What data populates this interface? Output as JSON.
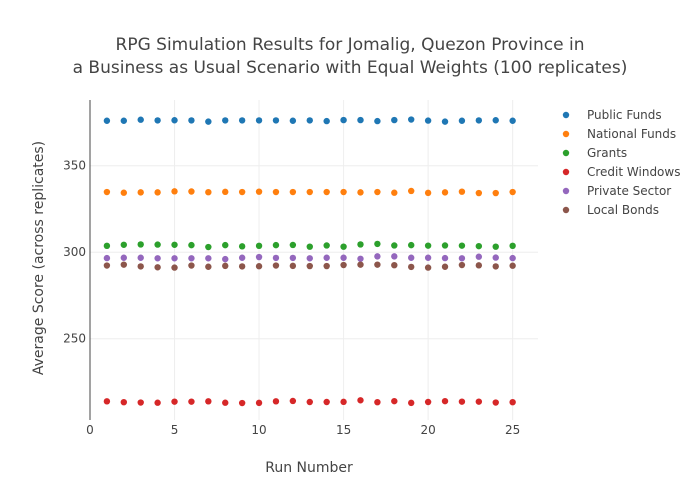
{
  "chart_data": {
    "type": "scatter",
    "title_lines": [
      "RPG Simulation Results for Jomalig, Quezon Province in",
      "a Business as Usual Scenario with Equal Weights (100 replicates)"
    ],
    "xlabel": "Run Number",
    "ylabel": "Average Score (across replicates)",
    "xlim": [
      0,
      26.5
    ],
    "ylim": [
      203,
      388
    ],
    "xticks": [
      0,
      5,
      10,
      15,
      20,
      25
    ],
    "yticks": [
      250,
      300,
      350
    ],
    "grid": true,
    "legend_position": "top-right",
    "x": [
      1,
      2,
      3,
      4,
      5,
      6,
      7,
      8,
      9,
      10,
      11,
      12,
      13,
      14,
      15,
      16,
      17,
      18,
      19,
      20,
      21,
      22,
      23,
      24,
      25
    ],
    "series": [
      {
        "name": "Public Funds",
        "color": "#1f77b4",
        "values": [
          376.0,
          376.0,
          376.6,
          376.2,
          376.3,
          376.2,
          375.5,
          376.2,
          376.2,
          376.2,
          376.2,
          376.0,
          376.2,
          375.8,
          376.4,
          376.4,
          375.8,
          376.4,
          376.7,
          376.1,
          375.5,
          376.0,
          376.2,
          376.3,
          376.0
        ]
      },
      {
        "name": "National Funds",
        "color": "#ff7f0e",
        "values": [
          334.8,
          334.4,
          334.6,
          334.6,
          335.2,
          335.1,
          334.7,
          334.9,
          334.8,
          335.0,
          334.8,
          334.8,
          334.8,
          334.8,
          334.8,
          334.6,
          334.8,
          334.4,
          335.4,
          334.3,
          334.6,
          335.0,
          334.2,
          334.2,
          334.8
        ]
      },
      {
        "name": "Grants",
        "color": "#2ca02c",
        "values": [
          303.7,
          304.3,
          304.5,
          304.4,
          304.3,
          304.1,
          303.0,
          304.1,
          303.4,
          303.7,
          304.1,
          304.2,
          303.2,
          303.9,
          303.2,
          304.5,
          304.8,
          303.9,
          304.1,
          303.8,
          303.9,
          303.8,
          303.5,
          303.2,
          303.7
        ]
      },
      {
        "name": "Credit Windows",
        "color": "#d62728",
        "values": [
          213.8,
          213.3,
          213.1,
          213.0,
          213.6,
          213.6,
          213.8,
          213.0,
          212.8,
          212.9,
          213.8,
          214.0,
          213.4,
          213.4,
          213.5,
          214.4,
          213.3,
          213.9,
          212.9,
          213.4,
          213.9,
          213.6,
          213.6,
          213.1,
          213.3
        ]
      },
      {
        "name": "Private Sector",
        "color": "#9467bd",
        "values": [
          296.6,
          296.8,
          296.8,
          296.5,
          296.5,
          296.5,
          296.5,
          296.0,
          296.8,
          297.2,
          296.7,
          296.7,
          296.5,
          296.8,
          296.8,
          296.2,
          297.6,
          297.6,
          296.8,
          296.8,
          296.6,
          296.5,
          297.4,
          296.9,
          296.6
        ]
      },
      {
        "name": "Local Bonds",
        "color": "#8c564b",
        "values": [
          292.3,
          292.8,
          291.8,
          291.3,
          291.1,
          292.3,
          291.6,
          292.1,
          291.8,
          291.9,
          292.3,
          292.1,
          292.0,
          292.0,
          292.6,
          292.8,
          292.8,
          292.5,
          291.5,
          291.1,
          291.6,
          292.6,
          292.4,
          291.8,
          292.2
        ]
      }
    ]
  }
}
